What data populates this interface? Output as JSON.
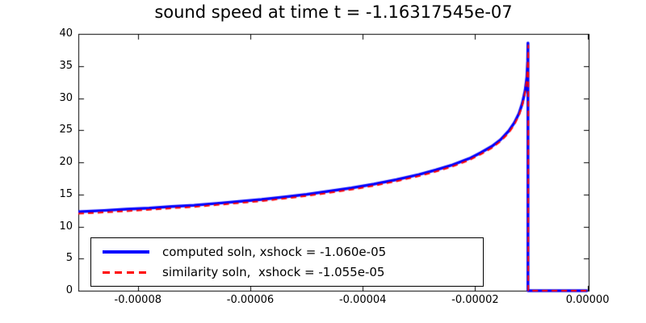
{
  "chart_data": {
    "type": "line",
    "title": "sound speed at time t = -1.16317545e-07",
    "xlabel": "",
    "ylabel": "",
    "xlim": [
      -9.06e-05,
      2e-07
    ],
    "ylim": [
      0,
      40
    ],
    "grid": false,
    "x_ticks": [
      {
        "v": -8e-05,
        "label": "-0.00008"
      },
      {
        "v": -6e-05,
        "label": "-0.00006"
      },
      {
        "v": -4e-05,
        "label": "-0.00004"
      },
      {
        "v": -2e-05,
        "label": "-0.00002"
      },
      {
        "v": 0.0,
        "label": "0.00000"
      }
    ],
    "y_ticks": [
      {
        "v": 0,
        "label": "0"
      },
      {
        "v": 5,
        "label": "5"
      },
      {
        "v": 10,
        "label": "10"
      },
      {
        "v": 15,
        "label": "15"
      },
      {
        "v": 20,
        "label": "20"
      },
      {
        "v": 25,
        "label": "25"
      },
      {
        "v": 30,
        "label": "30"
      },
      {
        "v": 35,
        "label": "35"
      },
      {
        "v": 40,
        "label": "40"
      }
    ],
    "legend": {
      "position": "lower left"
    },
    "series": [
      {
        "name": "computed soln, xshock = -1.060e-05",
        "color": "#0000ff",
        "style": "solid",
        "width": 3.5,
        "xshock": -1.06e-05,
        "x": [
          -9.06e-05,
          -8.6e-05,
          -8.2e-05,
          -7.8e-05,
          -7.4e-05,
          -7e-05,
          -6.6e-05,
          -6.2e-05,
          -5.8e-05,
          -5.4e-05,
          -5e-05,
          -4.6e-05,
          -4.2e-05,
          -3.8e-05,
          -3.4e-05,
          -3e-05,
          -2.7e-05,
          -2.4e-05,
          -2.1e-05,
          -1.9e-05,
          -1.7e-05,
          -1.55e-05,
          -1.4e-05,
          -1.3e-05,
          -1.22e-05,
          -1.16e-05,
          -1.11e-05,
          -1.08e-05,
          -1.065e-05,
          -1.06e-05,
          -1.06e-05,
          -1e-05,
          0.0
        ],
        "y": [
          12.3,
          12.5,
          12.7,
          12.85,
          13.1,
          13.3,
          13.6,
          13.9,
          14.2,
          14.6,
          15.0,
          15.5,
          16.0,
          16.6,
          17.3,
          18.1,
          18.8,
          19.6,
          20.6,
          21.5,
          22.5,
          23.5,
          24.9,
          26.2,
          27.6,
          29.2,
          31.2,
          33.2,
          35.8,
          38.6,
          0.0,
          0.0,
          0.0
        ]
      },
      {
        "name": "similarity soln,  xshock = -1.055e-05",
        "color": "#ff0000",
        "style": "dashed",
        "width": 2,
        "xshock": -1.055e-05,
        "x": [
          -9.06e-05,
          -8.6e-05,
          -8.2e-05,
          -7.8e-05,
          -7.4e-05,
          -7e-05,
          -6.6e-05,
          -6.2e-05,
          -5.8e-05,
          -5.4e-05,
          -5e-05,
          -4.6e-05,
          -4.2e-05,
          -3.8e-05,
          -3.4e-05,
          -3e-05,
          -2.7e-05,
          -2.4e-05,
          -2.1e-05,
          -1.9e-05,
          -1.7e-05,
          -1.55e-05,
          -1.4e-05,
          -1.3e-05,
          -1.22e-05,
          -1.16e-05,
          -1.11e-05,
          -1.08e-05,
          -1.06e-05,
          -1.055e-05,
          -1.055e-05,
          -1e-05,
          0.0
        ],
        "y": [
          12.0,
          12.2,
          12.4,
          12.6,
          12.85,
          13.05,
          13.35,
          13.65,
          13.95,
          14.35,
          14.75,
          15.25,
          15.75,
          16.35,
          17.05,
          17.85,
          18.55,
          19.35,
          20.35,
          21.25,
          22.25,
          23.25,
          24.6,
          25.9,
          27.3,
          28.9,
          30.9,
          32.9,
          36.0,
          38.2,
          0.0,
          0.0,
          0.0
        ]
      }
    ]
  }
}
